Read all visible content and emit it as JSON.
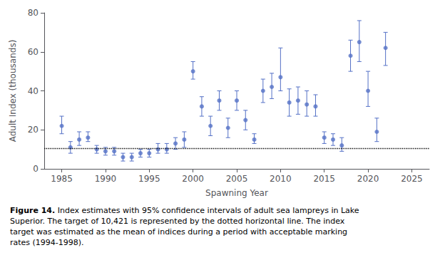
{
  "chart_data": {
    "type": "errorbar",
    "x": [
      1985,
      1986,
      1987,
      1988,
      1989,
      1990,
      1991,
      1992,
      1993,
      1994,
      1995,
      1996,
      1997,
      1998,
      1999,
      2000,
      2001,
      2002,
      2003,
      2004,
      2005,
      2006,
      2007,
      2008,
      2009,
      2010,
      2011,
      2012,
      2013,
      2014,
      2015,
      2016,
      2017,
      2018,
      2019,
      2020,
      2021,
      2022
    ],
    "values": [
      22,
      11,
      15,
      16,
      10,
      9,
      9,
      6,
      6,
      8,
      8,
      10,
      10,
      13,
      15,
      50,
      32,
      22,
      35,
      21,
      35,
      25,
      15,
      40,
      42,
      47,
      34,
      35,
      33,
      32,
      16,
      15,
      12,
      58,
      65,
      40,
      19,
      62
    ],
    "lo": [
      18,
      8,
      12,
      14,
      8,
      7,
      7,
      4,
      4,
      6,
      6,
      8,
      8,
      10,
      11,
      46,
      27,
      17,
      30,
      16,
      30,
      20,
      13,
      34,
      36,
      40,
      27,
      28,
      27,
      27,
      13,
      12,
      9,
      50,
      55,
      32,
      14,
      53
    ],
    "hi": [
      27,
      14,
      19,
      19,
      12,
      11,
      11,
      8,
      8,
      10,
      10,
      13,
      13,
      16,
      19,
      55,
      37,
      27,
      40,
      26,
      40,
      30,
      18,
      46,
      49,
      62,
      41,
      42,
      40,
      38,
      19,
      18,
      16,
      66,
      76,
      50,
      26,
      70
    ],
    "target": 10.421,
    "xlabel": "Spawning Year",
    "ylabel": "Adult Index (thousands)",
    "xlim": [
      1983,
      2027
    ],
    "ylim": [
      0,
      80
    ],
    "xticks": [
      1985,
      1990,
      1995,
      2000,
      2005,
      2010,
      2015,
      2020,
      2025
    ],
    "yticks": [
      0,
      20,
      40,
      60,
      80
    ],
    "grid": false,
    "marker": "circle",
    "annotations": [
      "Figure 14.",
      "Index estimates with 95% confidence intervals of adult sea lampreys in Lake Superior. The target of 10,421 is represented by the dotted horizontal line. The index target was estimated as the mean of indices during a period with acceptable marking rates (1994-1998)."
    ]
  }
}
